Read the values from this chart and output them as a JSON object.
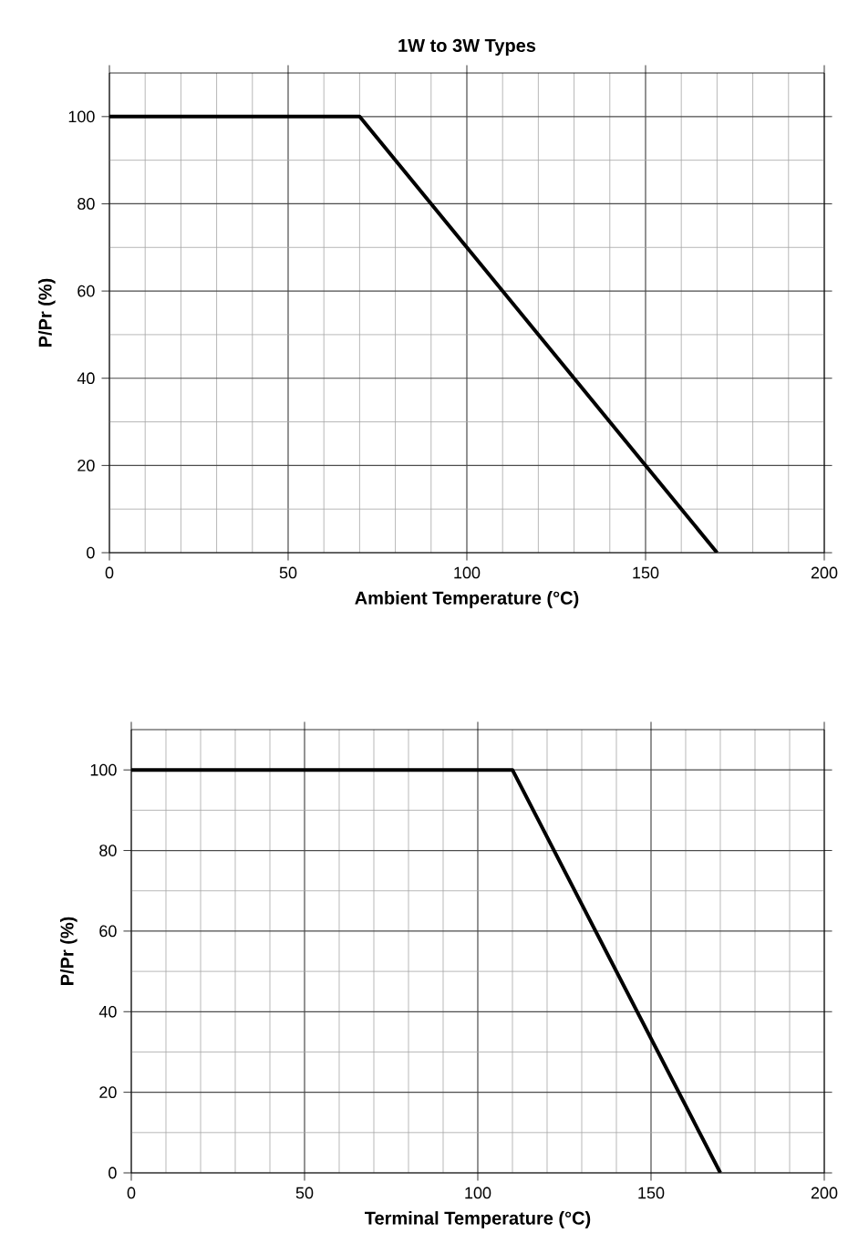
{
  "chart_data": [
    {
      "type": "line",
      "title": "1W to 3W Types",
      "xlabel": "Ambient Temperature (°C)",
      "ylabel": "P/Pr (%)",
      "x": [
        0,
        70,
        170
      ],
      "series": [
        {
          "color": "#000000",
          "values": [
            100,
            100,
            0
          ]
        }
      ],
      "xlim": [
        0,
        200
      ],
      "ylim": [
        0,
        110
      ],
      "xticks": [
        0,
        50,
        100,
        150,
        200
      ],
      "yticks": [
        0,
        20,
        40,
        60,
        80,
        100
      ],
      "grid": true,
      "marker": "none",
      "line_style": "solid"
    },
    {
      "type": "line",
      "xlabel": "Terminal Temperature (°C)",
      "ylabel": "P/Pr (%)",
      "x": [
        0,
        110,
        170
      ],
      "series": [
        {
          "color": "#000000",
          "values": [
            100,
            100,
            0
          ]
        }
      ],
      "xlim": [
        0,
        200
      ],
      "ylim": [
        0,
        110
      ],
      "xticks": [
        0,
        50,
        100,
        150,
        200
      ],
      "yticks": [
        0,
        20,
        40,
        60,
        80,
        100
      ],
      "grid": true,
      "marker": "none",
      "line_style": "solid"
    }
  ]
}
